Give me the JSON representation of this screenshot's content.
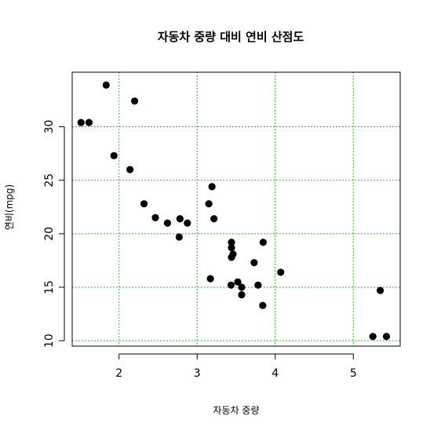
{
  "chart_data": {
    "type": "scatter",
    "title": "자동차 중량 대비 연비 산점도",
    "xlabel": "자동차 중량",
    "ylabel": "연비(mpg)",
    "xlim": [
      1.4,
      5.6
    ],
    "ylim": [
      9.5,
      35.1
    ],
    "x_ticks": [
      2,
      3,
      4,
      5
    ],
    "y_ticks": [
      10,
      15,
      20,
      25,
      30
    ],
    "x_ticks_labels": [
      "2",
      "3",
      "4",
      "5"
    ],
    "y_ticks_labels": [
      "10",
      "15",
      "20",
      "25",
      "30"
    ],
    "grid": true,
    "grid_color": "#22bb22",
    "point_color": "#000000",
    "points": [
      {
        "x": 2.62,
        "y": 21.0
      },
      {
        "x": 2.875,
        "y": 21.0
      },
      {
        "x": 2.32,
        "y": 22.8
      },
      {
        "x": 3.215,
        "y": 21.4
      },
      {
        "x": 3.44,
        "y": 18.7
      },
      {
        "x": 3.46,
        "y": 18.1
      },
      {
        "x": 3.57,
        "y": 14.3
      },
      {
        "x": 3.19,
        "y": 24.4
      },
      {
        "x": 3.15,
        "y": 22.8
      },
      {
        "x": 3.44,
        "y": 19.2
      },
      {
        "x": 3.44,
        "y": 17.8
      },
      {
        "x": 4.07,
        "y": 16.4
      },
      {
        "x": 3.73,
        "y": 17.3
      },
      {
        "x": 3.78,
        "y": 15.2
      },
      {
        "x": 5.25,
        "y": 10.4
      },
      {
        "x": 5.424,
        "y": 10.4
      },
      {
        "x": 5.345,
        "y": 14.7
      },
      {
        "x": 2.2,
        "y": 32.4
      },
      {
        "x": 1.615,
        "y": 30.4
      },
      {
        "x": 1.835,
        "y": 33.9
      },
      {
        "x": 2.465,
        "y": 21.5
      },
      {
        "x": 3.52,
        "y": 15.5
      },
      {
        "x": 3.435,
        "y": 15.2
      },
      {
        "x": 3.84,
        "y": 13.3
      },
      {
        "x": 3.845,
        "y": 19.2
      },
      {
        "x": 1.935,
        "y": 27.3
      },
      {
        "x": 2.14,
        "y": 26.0
      },
      {
        "x": 1.513,
        "y": 30.4
      },
      {
        "x": 3.17,
        "y": 15.8
      },
      {
        "x": 2.77,
        "y": 19.7
      },
      {
        "x": 3.57,
        "y": 15.0
      },
      {
        "x": 2.78,
        "y": 21.4
      }
    ]
  }
}
